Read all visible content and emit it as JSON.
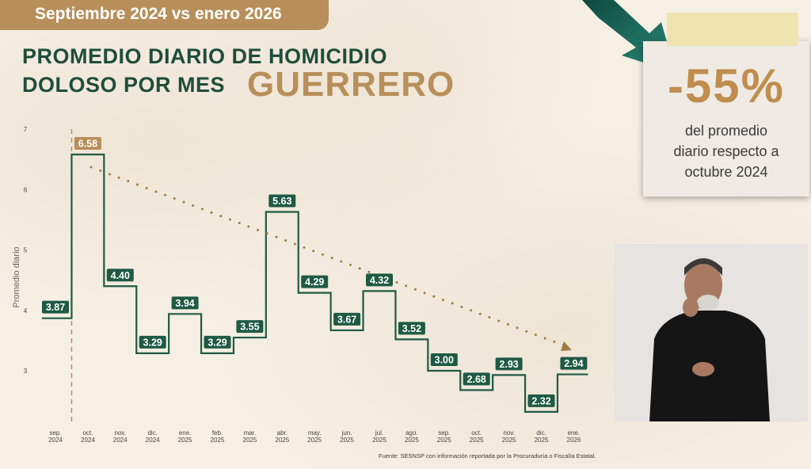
{
  "banner": "Septiembre 2024 vs enero 2026",
  "title_line1": "PROMEDIO DIARIO DE HOMICIDIO",
  "title_line2": "DOLOSO POR MES",
  "state": "GUERRERO",
  "callout": {
    "value": "-55%",
    "line1": "del promedio",
    "line2": "diario respecto a",
    "line3": "octubre 2024"
  },
  "source": "Fuente: SESNSP con información reportada por la Procuraduría o Fiscalía Estatal.",
  "colors": {
    "line": "#1f5a44",
    "label_bg": "#1f5a44",
    "highlight": "#b88f5a",
    "trend": "#a07a40"
  },
  "chart_data": {
    "type": "line",
    "step": true,
    "ylabel": "Promedio diario",
    "ylim": [
      3,
      7
    ],
    "yticks": [
      3,
      4,
      5,
      6,
      7
    ],
    "categories": [
      [
        "sep.",
        "2024"
      ],
      [
        "oct.",
        "2024"
      ],
      [
        "nov.",
        "2024"
      ],
      [
        "dic.",
        "2024"
      ],
      [
        "ene.",
        "2025"
      ],
      [
        "feb.",
        "2025"
      ],
      [
        "mar.",
        "2025"
      ],
      [
        "abr.",
        "2025"
      ],
      [
        "may.",
        "2025"
      ],
      [
        "jun.",
        "2025"
      ],
      [
        "jul.",
        "2025"
      ],
      [
        "ago.",
        "2025"
      ],
      [
        "sep.",
        "2025"
      ],
      [
        "oct.",
        "2025"
      ],
      [
        "nov.",
        "2025"
      ],
      [
        "dic.",
        "2025"
      ],
      [
        "ene.",
        "2026"
      ]
    ],
    "values": [
      3.87,
      6.58,
      4.4,
      3.29,
      3.94,
      3.29,
      3.55,
      5.63,
      4.29,
      3.67,
      4.32,
      3.52,
      3.0,
      2.68,
      2.93,
      2.32,
      2.94
    ],
    "labels": [
      "3.87",
      "6.58",
      "4.40",
      "3.29",
      "3.94",
      "3.29",
      "3.55",
      "5.63",
      "4.29",
      "3.67",
      "4.32",
      "3.52",
      "3.00",
      "2.68",
      "2.93",
      "2.32",
      "2.94"
    ],
    "highlight_index": 1,
    "reference_line": "oct. 2024",
    "trend": "dotted arrow from oct. 2024 to ene. 2026",
    "grid": false
  }
}
